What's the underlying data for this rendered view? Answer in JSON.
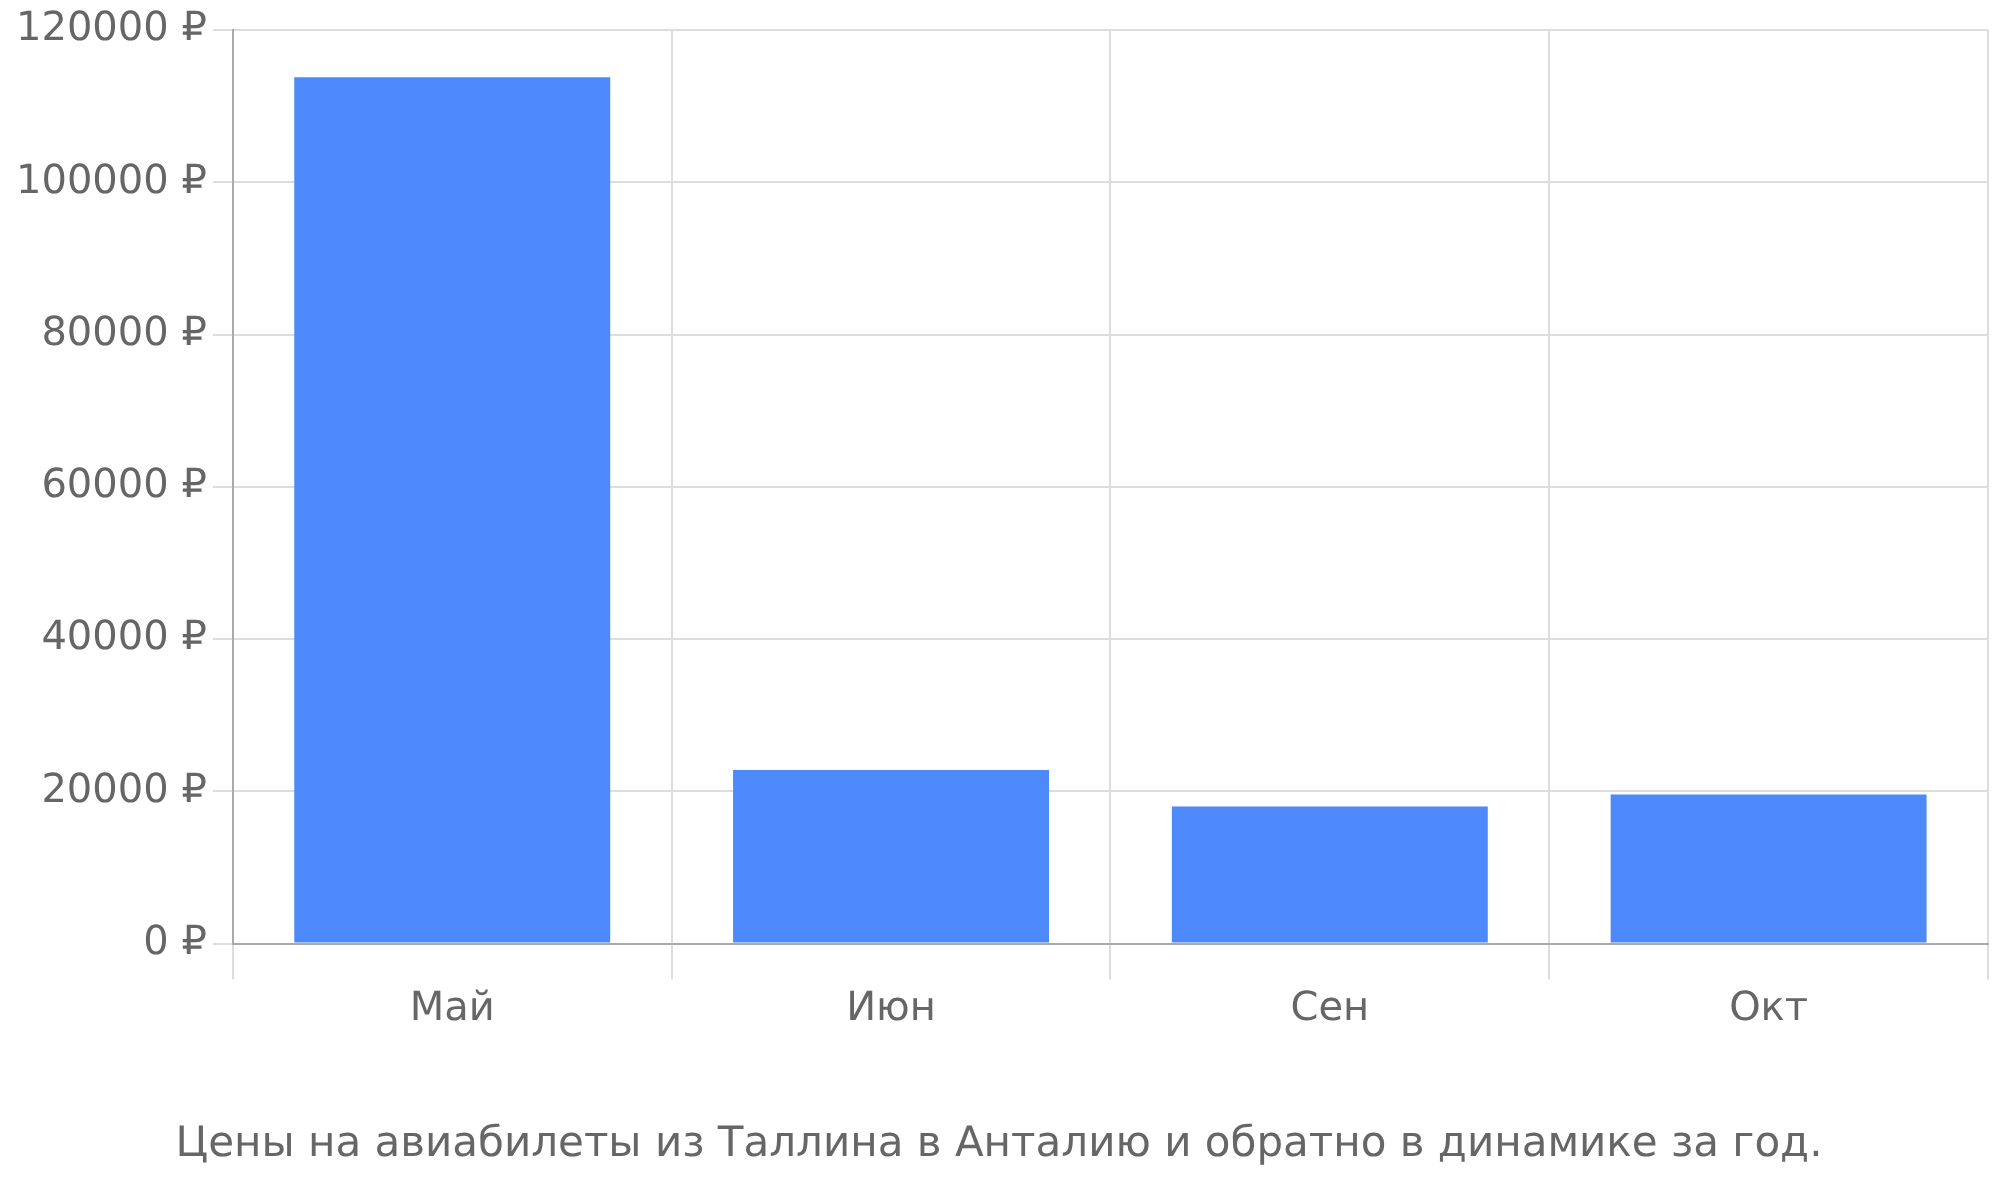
{
  "chart_data": {
    "type": "bar",
    "title": "Цены на авиабилеты из Таллина в Анталию и обратно в динамике за год.",
    "categories": [
      "Май",
      "Июн",
      "Сен",
      "Окт"
    ],
    "values": [
      113800,
      22800,
      18000,
      19600
    ],
    "color": "#4d89fb",
    "ylim": [
      0,
      120000
    ],
    "yticks": [
      {
        "value": 0,
        "label": "0 ₽"
      },
      {
        "value": 20000,
        "label": "20000 ₽"
      },
      {
        "value": 40000,
        "label": "40000 ₽"
      },
      {
        "value": 60000,
        "label": "60000 ₽"
      },
      {
        "value": 80000,
        "label": "80000 ₽"
      },
      {
        "value": 100000,
        "label": "100000 ₽"
      },
      {
        "value": 120000,
        "label": "120000 ₽"
      }
    ],
    "grid": true,
    "legend": false
  }
}
